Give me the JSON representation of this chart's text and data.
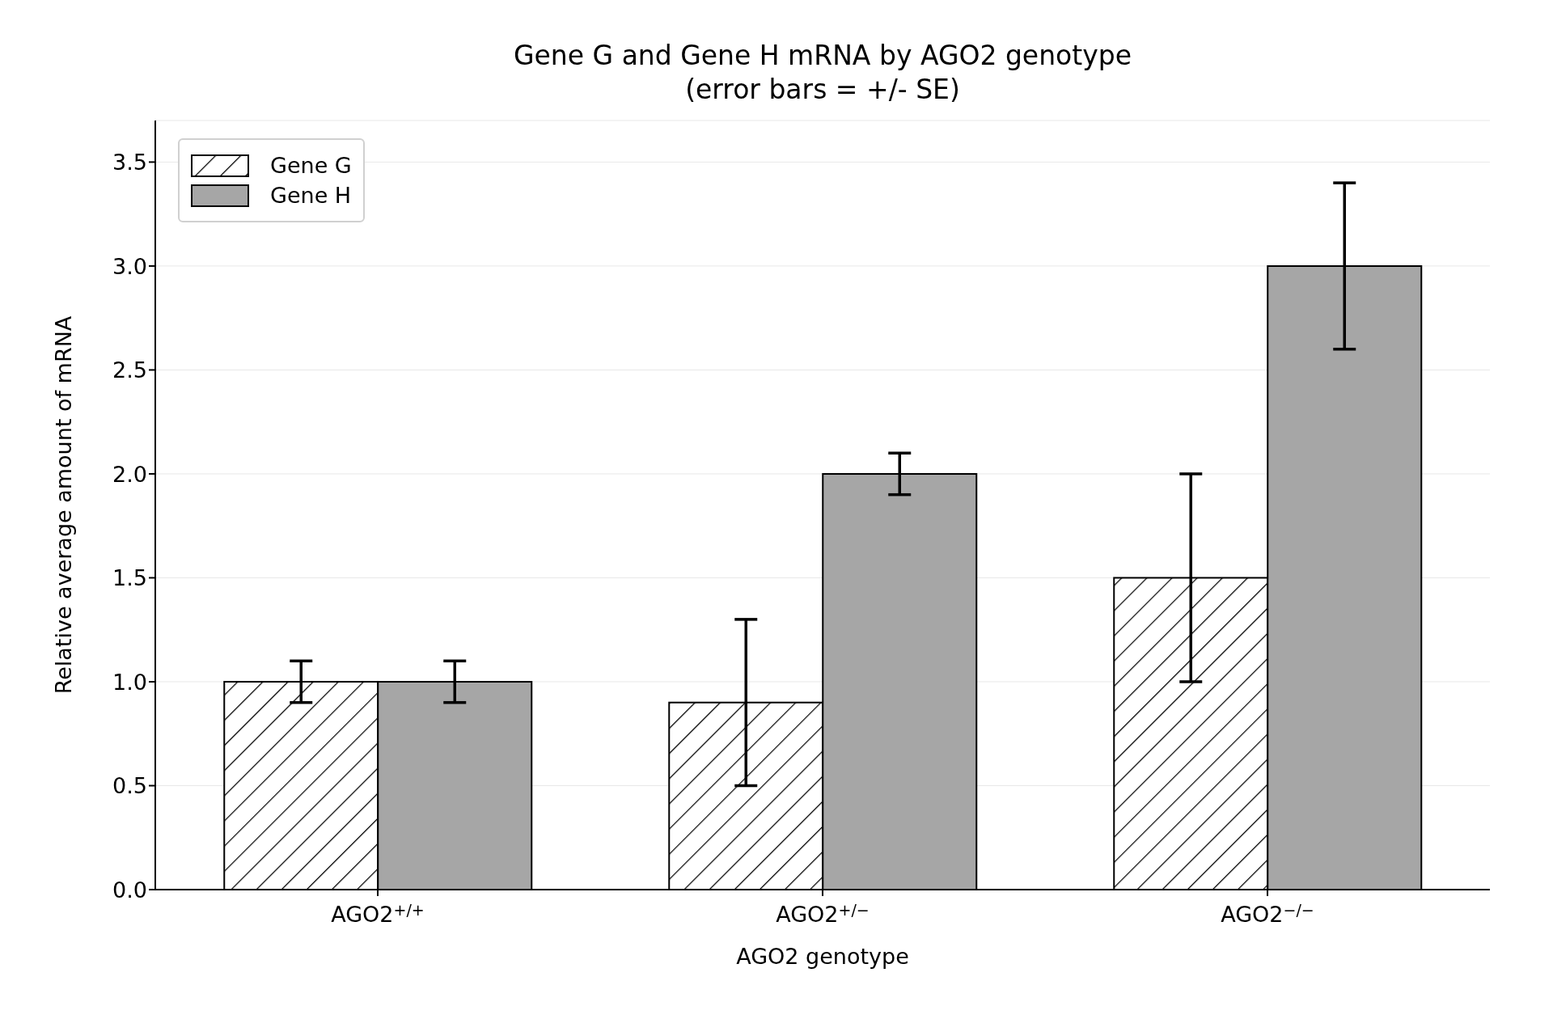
{
  "chart_data": {
    "type": "bar",
    "title": "Gene G and Gene H mRNA by AGO2 genotype",
    "subtitle": "(error bars = +/- SE)",
    "xlabel": "AGO2 genotype",
    "ylabel": "Relative average amount of mRNA",
    "categories": [
      "AGO2$^{+/+}$",
      "AGO2$^{+/−}$",
      "AGO2$^{−/−}$"
    ],
    "series": [
      {
        "name": "Gene G",
        "color": "#ffffff",
        "values": [
          1.0,
          0.9,
          1.5
        ],
        "errors": [
          0.1,
          0.4,
          0.5
        ]
      },
      {
        "name": "Gene H",
        "color": "#a6a6a6",
        "values": [
          1.0,
          2.0,
          3.0
        ],
        "errors": [
          0.1,
          0.1,
          0.4
        ]
      }
    ],
    "ylim": [
      0,
      3.7
    ],
    "yticks": [
      {
        "value": 0,
        "label": "0.0"
      },
      0.5,
      {
        "value": 1,
        "label": "1.0"
      },
      1.5,
      {
        "value": 2,
        "label": "2.0"
      },
      2.5,
      {
        "value": 3,
        "label": "3.0"
      },
      3.5
    ],
    "grid": "y",
    "legend": "top left"
  }
}
